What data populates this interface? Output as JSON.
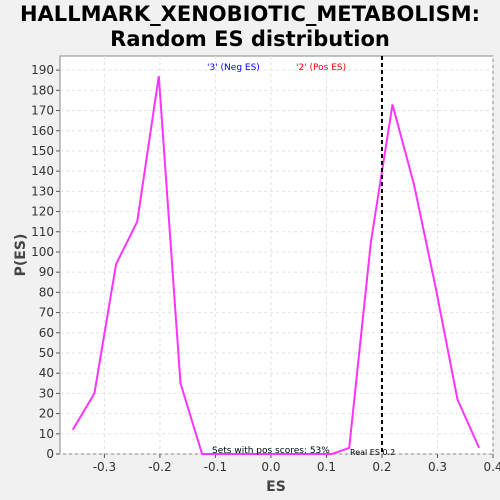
{
  "chart_data": {
    "type": "line",
    "title_line1": "HALLMARK_XENOBIOTIC_METABOLISM:",
    "title_line2": "Random ES distribution",
    "xlabel": "ES",
    "ylabel": "P(ES)",
    "xlim": [
      -0.38,
      0.4
    ],
    "ylim": [
      0,
      197
    ],
    "x_ticks": [
      -0.3,
      -0.2,
      -0.1,
      0.0,
      0.1,
      0.2,
      0.3,
      0.4
    ],
    "x_tick_labels": [
      "-0.3",
      "-0.2",
      "-0.1",
      "0.0",
      "0.1",
      "0.2",
      "0.3",
      "0.4"
    ],
    "y_ticks": [
      0,
      10,
      20,
      30,
      40,
      50,
      60,
      70,
      80,
      90,
      100,
      110,
      120,
      130,
      140,
      150,
      160,
      170,
      180,
      190
    ],
    "y_tick_labels": [
      "0",
      "10",
      "20",
      "30",
      "40",
      "50",
      "60",
      "70",
      "80",
      "90",
      "100",
      "110",
      "120",
      "130",
      "140",
      "150",
      "160",
      "170",
      "180",
      "190"
    ],
    "grid": true,
    "series": [
      {
        "color": "#ff33ff",
        "x": [
          -0.357,
          -0.318,
          -0.279,
          -0.241,
          -0.202,
          -0.163,
          -0.124,
          -0.085,
          -0.046,
          -0.007,
          0.032,
          0.071,
          0.11,
          0.141,
          0.18,
          0.219,
          0.258,
          0.297,
          0.336,
          0.375
        ],
        "y": [
          12,
          30,
          94,
          115,
          187,
          35,
          0,
          0,
          0,
          0,
          0,
          0,
          0,
          3,
          105,
          173,
          133,
          82,
          27,
          3
        ]
      }
    ],
    "real_es": 0.2,
    "real_es_label": "Real ES 0.2",
    "legend_neg": "'3' (Neg ES)",
    "legend_pos": "'2' (Pos ES)",
    "legend_neg_color": "#0000ff",
    "legend_pos_color": "#ff0000",
    "pos_scores_text": "Sets with pos scores: 53%"
  }
}
